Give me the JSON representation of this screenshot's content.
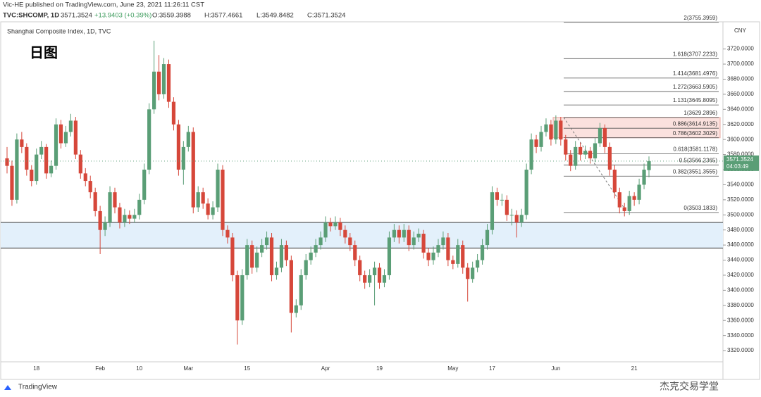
{
  "header": {
    "byline": "Vic-HE published on TradingView.com, June 23, 2021 11:26:11 CST",
    "symbol": "TVC:SHCOMP, 1D",
    "last": "3571.3524",
    "change": "+13.9403 (+0.39%)",
    "ohlc": [
      "O:3559.3988",
      "H:3577.4661",
      "L:3549.8482",
      "C:3571.3524"
    ]
  },
  "footer": "TradingView",
  "watermark": "杰克交易学堂",
  "chart_data": {
    "type": "candlestick",
    "title": "Shanghai Composite Index, 1D, TVC",
    "annotation": "日图",
    "currency": "CNY",
    "up_color": "#5a9e76",
    "down_color": "#d6473a",
    "grid": false,
    "ylim": [
      3307,
      3757
    ],
    "yticks": [
      {
        "value": 3320,
        "label": "3320.0000"
      },
      {
        "value": 3340,
        "label": "3340.0000"
      },
      {
        "value": 3360,
        "label": "3360.0000"
      },
      {
        "value": 3380,
        "label": "3380.0000"
      },
      {
        "value": 3400,
        "label": "3400.0000"
      },
      {
        "value": 3420,
        "label": "3420.0000"
      },
      {
        "value": 3440,
        "label": "3440.0000"
      },
      {
        "value": 3460,
        "label": "3460.0000"
      },
      {
        "value": 3480,
        "label": "3480.0000"
      },
      {
        "value": 3500,
        "label": "3500.0000"
      },
      {
        "value": 3520,
        "label": "3520.0000"
      },
      {
        "value": 3540,
        "label": "3540.0000"
      },
      {
        "value": 3560,
        "label": "3560.0000"
      },
      {
        "value": 3580,
        "label": "3580.0000"
      },
      {
        "value": 3600,
        "label": "3600.0000"
      },
      {
        "value": 3620,
        "label": "3620.0000"
      },
      {
        "value": 3640,
        "label": "3640.0000"
      },
      {
        "value": 3660,
        "label": "3660.0000"
      },
      {
        "value": 3680,
        "label": "3680.0000"
      },
      {
        "value": 3700,
        "label": "3700.0000"
      },
      {
        "value": 3720,
        "label": "3720.0000"
      }
    ],
    "categories": [
      null,
      null,
      null,
      null,
      null,
      null,
      "18",
      null,
      null,
      null,
      null,
      null,
      null,
      null,
      null,
      null,
      null,
      null,
      null,
      "Feb",
      null,
      null,
      null,
      null,
      null,
      null,
      null,
      "10",
      null,
      null,
      null,
      null,
      null,
      null,
      null,
      null,
      null,
      "Mar",
      null,
      null,
      null,
      null,
      null,
      null,
      null,
      null,
      null,
      null,
      null,
      "15",
      null,
      null,
      null,
      null,
      null,
      null,
      null,
      null,
      null,
      null,
      null,
      null,
      null,
      null,
      null,
      "Apr",
      null,
      null,
      null,
      null,
      null,
      null,
      null,
      null,
      null,
      null,
      "19",
      null,
      null,
      null,
      null,
      null,
      null,
      null,
      null,
      null,
      null,
      null,
      null,
      null,
      null,
      "May",
      null,
      null,
      null,
      null,
      null,
      null,
      null,
      "17",
      null,
      null,
      null,
      null,
      null,
      null,
      null,
      null,
      null,
      null,
      null,
      null,
      "Jun",
      null,
      null,
      null,
      null,
      null,
      null,
      null,
      null,
      null,
      null,
      null,
      null,
      null,
      null,
      null,
      "21",
      null,
      null,
      null
    ],
    "open": [
      3575,
      3565,
      3520,
      3600,
      3590,
      3560,
      3545,
      3580,
      3590,
      3555,
      3565,
      3620,
      3595,
      3610,
      3625,
      3580,
      3555,
      3545,
      3530,
      3505,
      3480,
      3490,
      3530,
      3510,
      3490,
      3500,
      3495,
      3500,
      3520,
      3560,
      3640,
      3690,
      3660,
      3700,
      3650,
      3620,
      3560,
      3590,
      3610,
      3510,
      3530,
      3515,
      3500,
      3510,
      3560,
      3480,
      3470,
      3420,
      3360,
      3420,
      3460,
      3430,
      3450,
      3460,
      3470,
      3420,
      3430,
      3460,
      3440,
      3370,
      3380,
      3420,
      3440,
      3450,
      3460,
      3470,
      3490,
      3485,
      3490,
      3480,
      3470,
      3460,
      3440,
      3420,
      3410,
      3420,
      3430,
      3410,
      3420,
      3470,
      3480,
      3470,
      3480,
      3460,
      3470,
      3475,
      3450,
      3440,
      3450,
      3460,
      3470,
      3440,
      3435,
      3460,
      3430,
      3415,
      3430,
      3440,
      3460,
      3480,
      3530,
      3520,
      3520,
      3500,
      3500,
      3490,
      3500,
      3560,
      3600,
      3590,
      3610,
      3620,
      3600,
      3625,
      3600,
      3580,
      3565,
      3590,
      3580,
      3585,
      3575,
      3595,
      3615,
      3590,
      3560,
      3530,
      3510,
      3505,
      3525,
      3520,
      3540,
      3559.3988
    ],
    "high": [
      3590,
      3572,
      3608,
      3610,
      3595,
      3566,
      3588,
      3598,
      3594,
      3572,
      3628,
      3626,
      3618,
      3634,
      3630,
      3586,
      3562,
      3552,
      3536,
      3512,
      3498,
      3538,
      3536,
      3516,
      3508,
      3506,
      3508,
      3528,
      3568,
      3648,
      3731,
      3712,
      3708,
      3706,
      3656,
      3626,
      3598,
      3618,
      3616,
      3538,
      3536,
      3522,
      3518,
      3568,
      3566,
      3486,
      3476,
      3426,
      3428,
      3468,
      3466,
      3458,
      3468,
      3478,
      3476,
      3438,
      3468,
      3466,
      3446,
      3388,
      3428,
      3448,
      3458,
      3468,
      3478,
      3498,
      3496,
      3498,
      3496,
      3486,
      3476,
      3466,
      3446,
      3426,
      3428,
      3438,
      3436,
      3428,
      3478,
      3488,
      3486,
      3488,
      3486,
      3478,
      3482,
      3480,
      3456,
      3458,
      3468,
      3478,
      3476,
      3446,
      3468,
      3466,
      3436,
      3438,
      3448,
      3468,
      3488,
      3538,
      3536,
      3528,
      3526,
      3508,
      3506,
      3508,
      3568,
      3608,
      3606,
      3618,
      3628,
      3626,
      3632,
      3630,
      3606,
      3586,
      3598,
      3596,
      3592,
      3590,
      3602,
      3622,
      3620,
      3596,
      3566,
      3536,
      3516,
      3532,
      3530,
      3548,
      3568,
      3577.4661
    ],
    "low": [
      3555,
      3512,
      3515,
      3582,
      3552,
      3538,
      3540,
      3574,
      3548,
      3550,
      3560,
      3588,
      3590,
      3604,
      3574,
      3548,
      3538,
      3522,
      3498,
      3448,
      3472,
      3484,
      3502,
      3482,
      3484,
      3488,
      3490,
      3494,
      3514,
      3554,
      3634,
      3652,
      3654,
      3642,
      3612,
      3552,
      3540,
      3584,
      3502,
      3504,
      3508,
      3494,
      3494,
      3504,
      3472,
      3462,
      3412,
      3328,
      3354,
      3414,
      3422,
      3424,
      3444,
      3454,
      3412,
      3414,
      3424,
      3432,
      3344,
      3364,
      3374,
      3414,
      3434,
      3444,
      3454,
      3464,
      3478,
      3480,
      3472,
      3462,
      3452,
      3432,
      3412,
      3402,
      3404,
      3380,
      3402,
      3404,
      3414,
      3464,
      3462,
      3464,
      3452,
      3454,
      3464,
      3442,
      3432,
      3434,
      3444,
      3454,
      3432,
      3428,
      3430,
      3422,
      3385,
      3410,
      3424,
      3434,
      3454,
      3474,
      3512,
      3512,
      3492,
      3486,
      3470,
      3484,
      3494,
      3554,
      3582,
      3584,
      3604,
      3592,
      3594,
      3592,
      3572,
      3558,
      3560,
      3572,
      3574,
      3568,
      3570,
      3590,
      3582,
      3552,
      3522,
      3502,
      3498,
      3500,
      3512,
      3514,
      3534,
      3549.8482
    ],
    "close": [
      3565,
      3520,
      3600,
      3590,
      3560,
      3545,
      3580,
      3590,
      3555,
      3565,
      3620,
      3595,
      3610,
      3625,
      3580,
      3555,
      3545,
      3530,
      3505,
      3480,
      3490,
      3530,
      3510,
      3490,
      3500,
      3495,
      3500,
      3520,
      3560,
      3640,
      3690,
      3660,
      3700,
      3650,
      3620,
      3560,
      3590,
      3610,
      3510,
      3530,
      3515,
      3500,
      3510,
      3560,
      3480,
      3470,
      3420,
      3360,
      3420,
      3460,
      3430,
      3450,
      3460,
      3470,
      3420,
      3430,
      3460,
      3440,
      3370,
      3380,
      3420,
      3440,
      3450,
      3460,
      3470,
      3490,
      3485,
      3490,
      3480,
      3470,
      3460,
      3440,
      3420,
      3410,
      3420,
      3430,
      3410,
      3420,
      3470,
      3480,
      3470,
      3480,
      3460,
      3470,
      3475,
      3450,
      3440,
      3450,
      3460,
      3470,
      3440,
      3435,
      3460,
      3430,
      3415,
      3430,
      3440,
      3460,
      3480,
      3530,
      3520,
      3520,
      3500,
      3500,
      3490,
      3500,
      3560,
      3600,
      3590,
      3610,
      3620,
      3600,
      3625,
      3600,
      3580,
      3565,
      3590,
      3580,
      3585,
      3575,
      3595,
      3615,
      3590,
      3560,
      3530,
      3510,
      3505,
      3525,
      3520,
      3540,
      3560,
      3571.3524
    ],
    "last_price": {
      "value": 3571.3524,
      "label": "3571.3524"
    },
    "countdown": "04:03:49",
    "zone": [
      3456,
      3490
    ],
    "fib_levels": [
      {
        "value": 3755.3959,
        "label": "2(3755.3959)"
      },
      {
        "value": 3707.2233,
        "label": "1.618(3707.2233)"
      },
      {
        "value": 3681.4976,
        "label": "1.414(3681.4976)"
      },
      {
        "value": 3663.5905,
        "label": "1.272(3663.5905)"
      },
      {
        "value": 3645.8095,
        "label": "1.131(3645.8095)"
      },
      {
        "value": 3629.2896,
        "label": "1(3629.2896)"
      },
      {
        "value": 3614.9135,
        "label": "0.886(3614.9135)"
      },
      {
        "value": 3602.3029,
        "label": "0.786(3602.3029)"
      },
      {
        "value": 3581.1178,
        "label": "0.618(3581.1178)"
      },
      {
        "value": 3566.2365,
        "label": "0.5(3566.2365)"
      },
      {
        "value": 3551.3555,
        "label": "0.382(3551.3555)"
      },
      {
        "value": 3503.1833,
        "label": "0(3503.1833)"
      }
    ]
  }
}
